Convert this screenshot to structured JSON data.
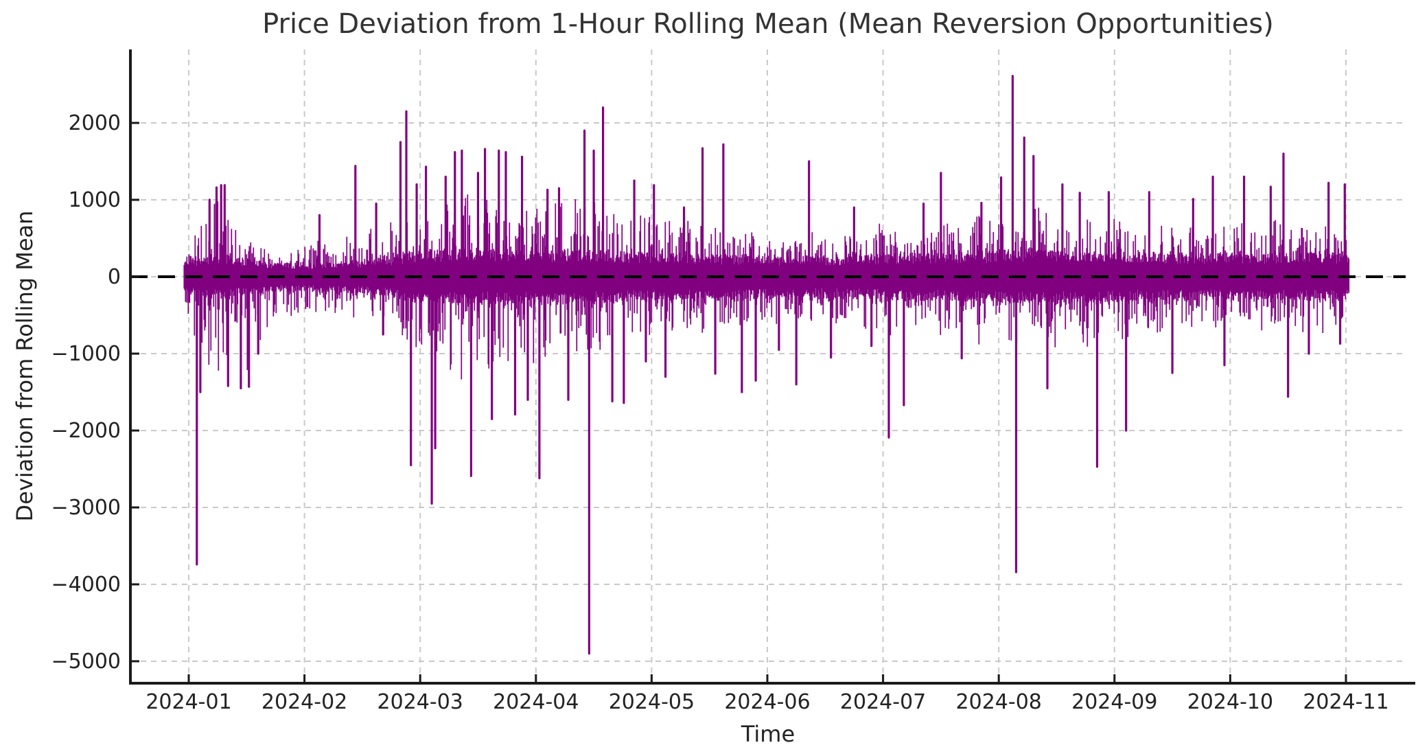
{
  "figure": {
    "background": "#ffffff"
  },
  "chart_data": {
    "type": "line",
    "title": "Price Deviation from 1-Hour Rolling Mean (Mean Reversion Opportunities)",
    "xlabel": "Time",
    "ylabel": "Deviation from Rolling Mean",
    "x_tick_labels": [
      "2024-01",
      "2024-02",
      "2024-03",
      "2024-04",
      "2024-05",
      "2024-06",
      "2024-07",
      "2024-08",
      "2024-09",
      "2024-10",
      "2024-11"
    ],
    "y_ticks": [
      2000,
      1000,
      0,
      -1000,
      -2000,
      -3000,
      -4000,
      -5000
    ],
    "ylim": [
      -5290,
      2960
    ],
    "xlim_months": [
      -0.5,
      10.52
    ],
    "data_t_range": [
      -0.04,
      10.03
    ],
    "x_start": "2024-01-01",
    "x_end": "2024-11-01",
    "legend_position": "none",
    "line_color": "#800080",
    "zero_line": {
      "value": 0,
      "color": "#000000",
      "style": "dashed"
    },
    "grid": {
      "show": true,
      "color": "#c9c9c9",
      "style": "dashed"
    },
    "axis": {
      "spine_color": "#1a1a1a",
      "tick_direction": "in"
    },
    "noise_model": {
      "seed": 1337,
      "core_fill_min": 0.55,
      "core_fill_rand": 0.5,
      "excursion_prob_pos": 0.45,
      "excursion_prob_neg": 0.5,
      "excursion_power": 1.9,
      "envelope_keyframes": [
        [
          0.0,
          240,
          700,
          900
        ],
        [
          0.15,
          280,
          1050,
          1300
        ],
        [
          0.3,
          300,
          1200,
          1500
        ],
        [
          0.5,
          230,
          600,
          1450
        ],
        [
          0.7,
          190,
          450,
          700
        ],
        [
          1.0,
          180,
          500,
          500
        ],
        [
          1.3,
          200,
          650,
          600
        ],
        [
          1.5,
          210,
          700,
          650
        ],
        [
          1.8,
          280,
          950,
          900
        ],
        [
          2.0,
          330,
          1200,
          1300
        ],
        [
          2.3,
          360,
          1300,
          1500
        ],
        [
          2.6,
          350,
          1250,
          1400
        ],
        [
          3.0,
          340,
          1100,
          1300
        ],
        [
          3.3,
          350,
          1200,
          1300
        ],
        [
          3.6,
          330,
          1100,
          1200
        ],
        [
          4.0,
          300,
          900,
          900
        ],
        [
          4.4,
          300,
          850,
          850
        ],
        [
          4.8,
          280,
          750,
          800
        ],
        [
          5.2,
          260,
          650,
          750
        ],
        [
          5.6,
          270,
          700,
          700
        ],
        [
          6.0,
          290,
          800,
          850
        ],
        [
          6.5,
          300,
          800,
          900
        ],
        [
          7.0,
          330,
          950,
          1000
        ],
        [
          7.3,
          360,
          1150,
          1100
        ],
        [
          7.7,
          330,
          1000,
          1000
        ],
        [
          8.0,
          310,
          850,
          900
        ],
        [
          8.5,
          300,
          800,
          850
        ],
        [
          9.0,
          300,
          800,
          800
        ],
        [
          9.5,
          310,
          850,
          800
        ],
        [
          10.0,
          300,
          800,
          850
        ]
      ]
    },
    "major_spikes": [
      [
        0.07,
        -3740
      ],
      [
        0.1,
        -1500
      ],
      [
        0.18,
        1000
      ],
      [
        0.24,
        1160
      ],
      [
        0.28,
        1190
      ],
      [
        0.31,
        1190
      ],
      [
        0.34,
        -1420
      ],
      [
        0.45,
        -1450
      ],
      [
        0.52,
        -1430
      ],
      [
        0.6,
        -1000
      ],
      [
        1.13,
        800
      ],
      [
        1.44,
        1440
      ],
      [
        1.62,
        950
      ],
      [
        1.68,
        -750
      ],
      [
        1.83,
        1750
      ],
      [
        1.88,
        2150
      ],
      [
        1.92,
        -2450
      ],
      [
        1.97,
        1200
      ],
      [
        2.05,
        1430
      ],
      [
        2.1,
        -2950
      ],
      [
        2.13,
        -2230
      ],
      [
        2.22,
        1300
      ],
      [
        2.3,
        1620
      ],
      [
        2.36,
        1640
      ],
      [
        2.44,
        -2590
      ],
      [
        2.5,
        1350
      ],
      [
        2.56,
        1660
      ],
      [
        2.62,
        -1850
      ],
      [
        2.68,
        1640
      ],
      [
        2.74,
        1620
      ],
      [
        2.82,
        -1790
      ],
      [
        2.88,
        1560
      ],
      [
        2.93,
        -1600
      ],
      [
        3.03,
        -2620
      ],
      [
        3.1,
        1130
      ],
      [
        3.2,
        1150
      ],
      [
        3.28,
        -1600
      ],
      [
        3.42,
        1900
      ],
      [
        3.46,
        -4900
      ],
      [
        3.5,
        1640
      ],
      [
        3.58,
        2200
      ],
      [
        3.66,
        -1620
      ],
      [
        3.76,
        -1640
      ],
      [
        3.85,
        1250
      ],
      [
        3.95,
        -1100
      ],
      [
        4.02,
        1190
      ],
      [
        4.12,
        -1300
      ],
      [
        4.28,
        900
      ],
      [
        4.44,
        1670
      ],
      [
        4.55,
        -1260
      ],
      [
        4.62,
        1720
      ],
      [
        4.78,
        -1500
      ],
      [
        4.9,
        -1350
      ],
      [
        5.1,
        -950
      ],
      [
        5.25,
        -1400
      ],
      [
        5.36,
        1500
      ],
      [
        5.55,
        -1050
      ],
      [
        5.75,
        900
      ],
      [
        5.9,
        -900
      ],
      [
        6.05,
        -2090
      ],
      [
        6.18,
        -1670
      ],
      [
        6.35,
        950
      ],
      [
        6.5,
        1350
      ],
      [
        6.68,
        -1060
      ],
      [
        6.85,
        960
      ],
      [
        7.02,
        1290
      ],
      [
        7.12,
        2610
      ],
      [
        7.15,
        -3840
      ],
      [
        7.22,
        1810
      ],
      [
        7.3,
        1570
      ],
      [
        7.42,
        -1450
      ],
      [
        7.55,
        1200
      ],
      [
        7.7,
        1090
      ],
      [
        7.85,
        -2470
      ],
      [
        7.95,
        1100
      ],
      [
        8.1,
        -2000
      ],
      [
        8.3,
        1100
      ],
      [
        8.5,
        -1250
      ],
      [
        8.68,
        1010
      ],
      [
        8.85,
        1300
      ],
      [
        8.95,
        -1150
      ],
      [
        9.12,
        1300
      ],
      [
        9.35,
        1170
      ],
      [
        9.46,
        1600
      ],
      [
        9.5,
        -1560
      ],
      [
        9.68,
        -1000
      ],
      [
        9.85,
        1220
      ],
      [
        9.95,
        -870
      ],
      [
        9.99,
        1200
      ]
    ]
  }
}
